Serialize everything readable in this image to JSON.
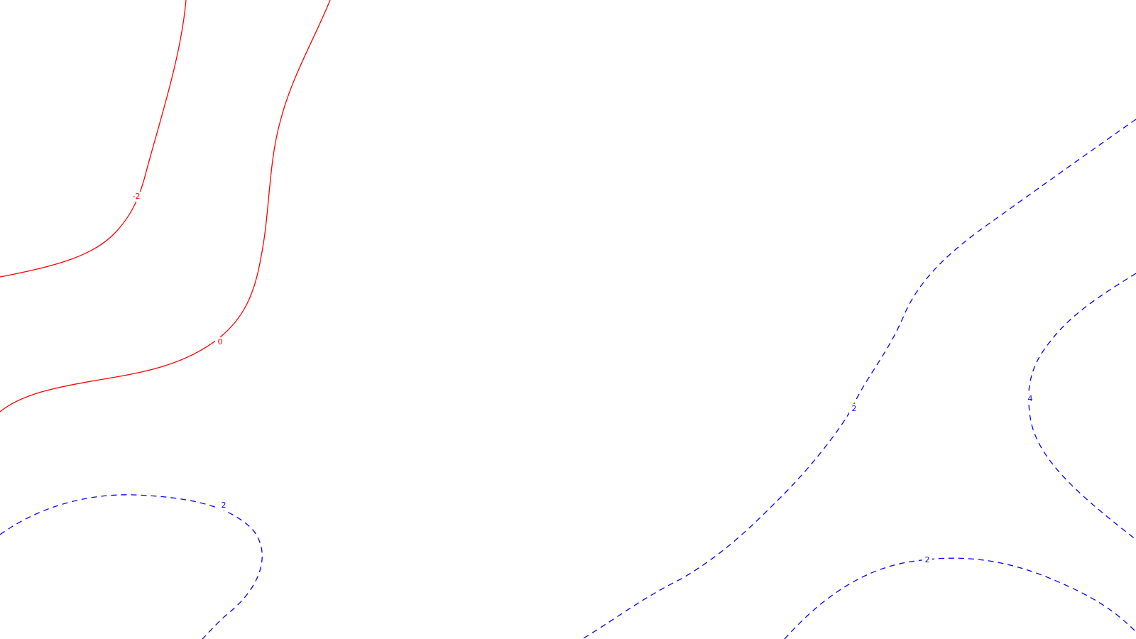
{
  "chart_data": {
    "type": "contour",
    "title": "",
    "xlabel": "",
    "ylabel": "",
    "grid": false,
    "legend": "none",
    "colors": {
      "negative": "#ff0000",
      "positive": "#0000ff",
      "background": "#ffffff"
    },
    "styles": {
      "negative": "solid",
      "positive": "dashed"
    },
    "contours": [
      {
        "level": -2,
        "label": "-2",
        "sign": "negative"
      },
      {
        "level": 0,
        "label": "0",
        "sign": "negative"
      },
      {
        "level": 2,
        "label": "2",
        "sign": "positive",
        "segment": "lower-left-loop"
      },
      {
        "level": 2,
        "label": "2",
        "sign": "positive",
        "segment": "diagonal-right"
      },
      {
        "level": 2,
        "label": "2",
        "sign": "positive",
        "segment": "bottom-right-arc"
      },
      {
        "level": 4,
        "label": "4",
        "sign": "positive",
        "segment": "right-edge"
      }
    ]
  }
}
